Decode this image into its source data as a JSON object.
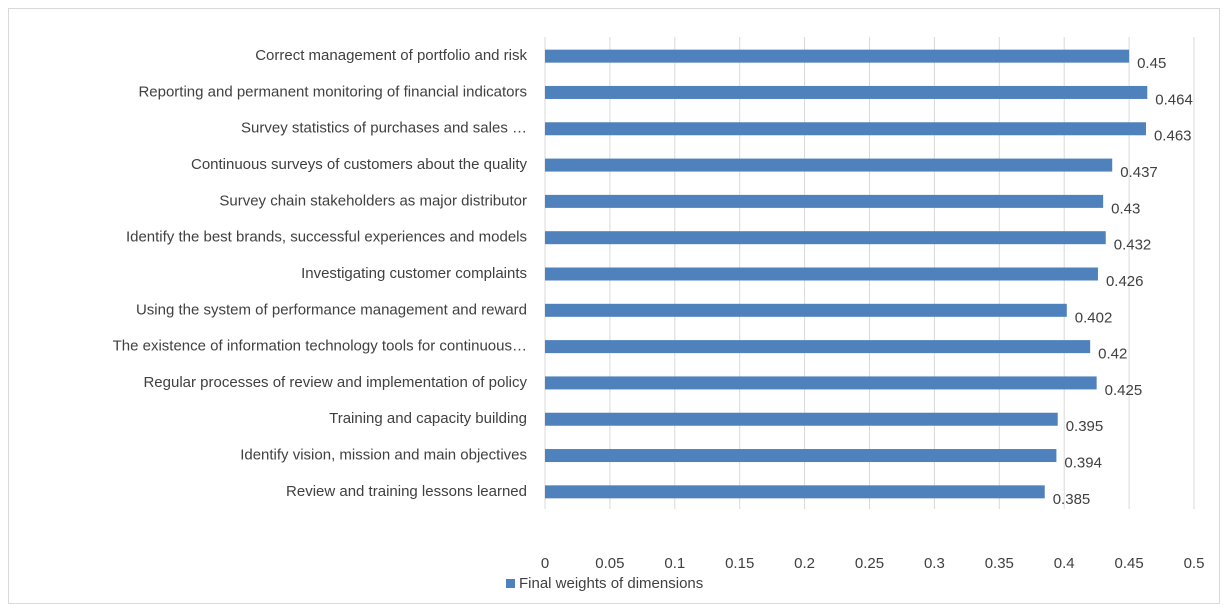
{
  "chart_data": {
    "type": "bar",
    "orientation": "horizontal",
    "categories": [
      "Correct management of portfolio and risk",
      "Reporting and permanent monitoring of financial indicators",
      "Survey statistics of purchases and sales …",
      "Continuous surveys of customers about the quality",
      "Survey chain stakeholders as major distributor",
      "Identify the best brands, successful experiences and models",
      "Investigating customer complaints",
      "Using the system of performance management and reward",
      "The existence of information technology tools for continuous…",
      "Regular processes of review and implementation of policy",
      "Training and capacity building",
      "Identify vision, mission and main objectives",
      "Review and training lessons learned"
    ],
    "series": [
      {
        "name": "Final weights of dimensions",
        "color": "#4f81bd",
        "values": [
          0.45,
          0.464,
          0.463,
          0.437,
          0.43,
          0.432,
          0.426,
          0.402,
          0.42,
          0.425,
          0.395,
          0.394,
          0.385
        ]
      }
    ],
    "xlim": [
      0,
      0.5
    ],
    "xticks": [
      0,
      0.05,
      0.1,
      0.15,
      0.2,
      0.25,
      0.3,
      0.35,
      0.4,
      0.45,
      0.5
    ],
    "grid": true,
    "legend": "bottom"
  }
}
